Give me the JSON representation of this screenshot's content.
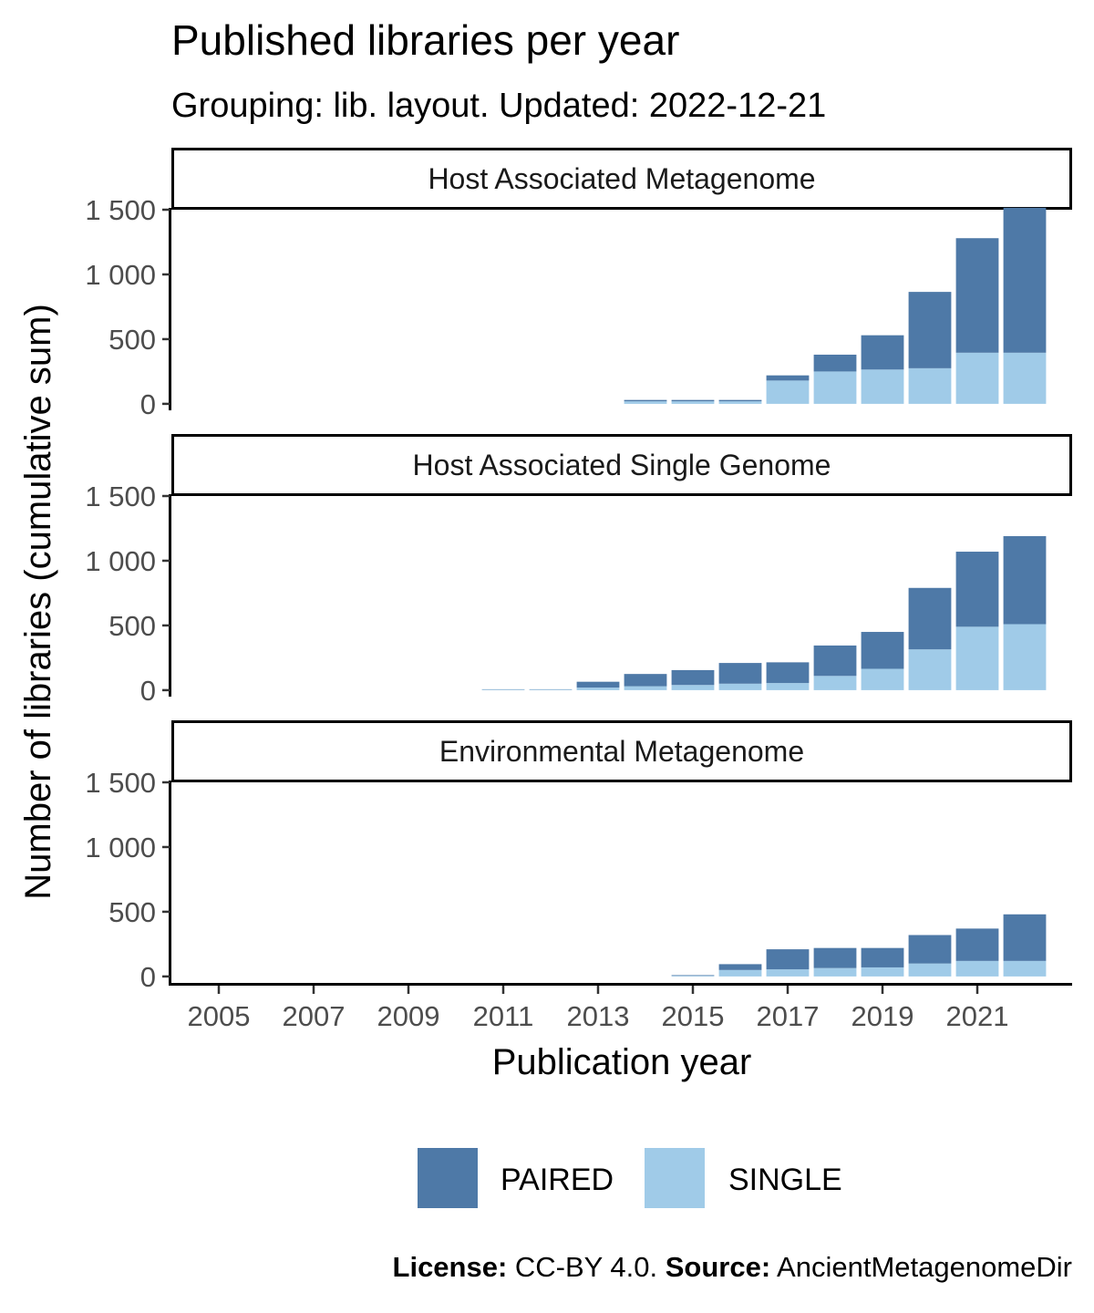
{
  "chart_data": {
    "type": "bar",
    "stacked": true,
    "title": "Published libraries per year",
    "subtitle": "Grouping: lib. layout. Updated: 2022-12-21",
    "xlabel": "Publication year",
    "ylabel": "Number of  libraries  (cumulative sum)",
    "x_ticks": [
      "2005",
      "2007",
      "2009",
      "2011",
      "2013",
      "2015",
      "2017",
      "2019",
      "2021"
    ],
    "x_range": [
      2004,
      2023
    ],
    "y_ticks": [
      "0",
      "500",
      "1 000",
      "1 500"
    ],
    "y_tick_values": [
      0,
      500,
      1000,
      1500
    ],
    "ylim": [
      -50,
      1500
    ],
    "grid": false,
    "legend_position": "bottom",
    "years": [
      2014,
      2015,
      2016,
      2017,
      2018,
      2019,
      2020,
      2021,
      2022
    ],
    "series_colors": {
      "PAIRED": "#4e79a7",
      "SINGLE": "#a0cbe8"
    },
    "legend": [
      "PAIRED",
      "SINGLE"
    ],
    "panels": [
      {
        "label": "Host Associated Metagenome",
        "years": [
          2014,
          2015,
          2016,
          2017,
          2018,
          2019,
          2020,
          2021,
          2022
        ],
        "series": [
          {
            "name": "SINGLE",
            "values": [
              20,
              20,
              20,
              180,
              250,
              265,
              275,
              395,
              395
            ]
          },
          {
            "name": "PAIRED",
            "values": [
              10,
              10,
              10,
              40,
              130,
              265,
              590,
              885,
              1120
            ]
          }
        ]
      },
      {
        "label": "Host Associated Single Genome",
        "years": [
          2011,
          2012,
          2013,
          2014,
          2015,
          2016,
          2017,
          2018,
          2019,
          2020,
          2021,
          2022
        ],
        "series": [
          {
            "name": "SINGLE",
            "values": [
              5,
              5,
              20,
              30,
              40,
              50,
              55,
              110,
              165,
              315,
              490,
              510
            ]
          },
          {
            "name": "PAIRED",
            "values": [
              2,
              2,
              45,
              95,
              115,
              160,
              160,
              235,
              285,
              475,
              580,
              680
            ]
          }
        ]
      },
      {
        "label": "Environmental Metagenome",
        "years": [
          2015,
          2016,
          2017,
          2018,
          2019,
          2020,
          2021,
          2022
        ],
        "series": [
          {
            "name": "SINGLE",
            "values": [
              5,
              50,
              55,
              65,
              70,
              100,
              120,
              120
            ]
          },
          {
            "name": "PAIRED",
            "values": [
              5,
              45,
              155,
              155,
              150,
              220,
              250,
              360
            ]
          }
        ]
      }
    ]
  },
  "caption": {
    "license_label": "License:",
    "license_value": " CC-BY 4.0. ",
    "source_label": "Source:",
    "source_value": " AncientMetagenomeDir"
  }
}
